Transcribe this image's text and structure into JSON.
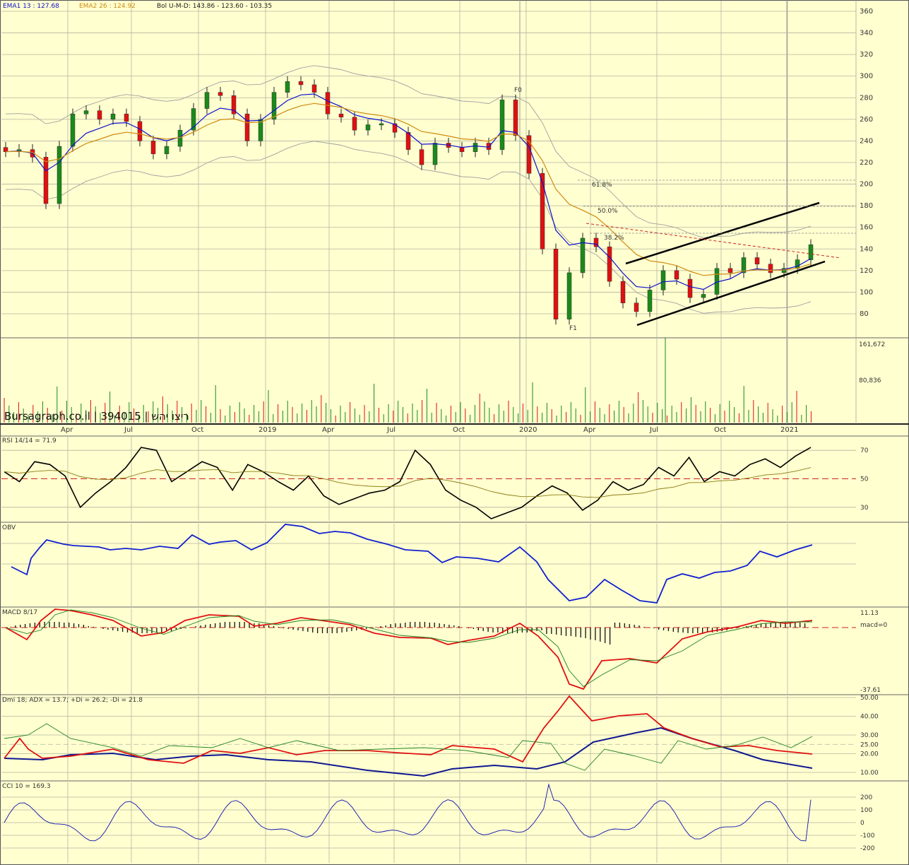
{
  "colors": {
    "background": "#ffffd0",
    "grid": "#b5b5a0",
    "up": "#1a8a1a",
    "down": "#e01010",
    "ema1": "#1010d0",
    "ema2": "#d08a10",
    "bollinger": "#a0a0a0",
    "obv": "#1020d0",
    "rsi": "#000000",
    "rsi_signal": "#8a7a10",
    "macd": "#e01010",
    "macd_signal": "#208020",
    "adx": "#101890",
    "plus_di": "#e01010",
    "minus_di": "#208020",
    "cci": "#1010b0",
    "volume": "#1a8a1a"
  },
  "header": {
    "ema1": "EMA1 13 : 127.68",
    "ema2": "EMA2 26 : 124.92",
    "bollinger": "Bol U-M-D: 143.86 - 123.60 - 103.35"
  },
  "brand": "Bursagraph.co.il | 394015 | ריצו יהש",
  "chart_data": {
    "type": "line",
    "x": [
      "Apr",
      "Jul",
      "Oct",
      "2019",
      "Apr",
      "Jul",
      "Oct",
      "2020",
      "Apr",
      "Jul",
      "Oct",
      "2021"
    ],
    "panels": [
      {
        "name": "price",
        "ylim": [
          60,
          365
        ],
        "yticks": [
          "360",
          "340",
          "320",
          "300",
          "280",
          "260",
          "240",
          "220",
          "200",
          "180",
          "160",
          "140",
          "120",
          "100",
          "80"
        ],
        "fib_labels": [
          "61.8%",
          "50.0%",
          "38.2%"
        ],
        "markers": [
          "F0",
          "F1"
        ],
        "series": [
          {
            "name": "EMA1 13",
            "last": 127.68
          },
          {
            "name": "EMA2 26",
            "last": 124.92
          }
        ],
        "bollinger": {
          "upper": 143.86,
          "middle": 123.6,
          "lower": 103.35
        },
        "approx_close": [
          230,
          232,
          225,
          182,
          235,
          265,
          268,
          260,
          265,
          258,
          240,
          228,
          235,
          250,
          270,
          285,
          282,
          265,
          240,
          260,
          285,
          295,
          292,
          285,
          265,
          262,
          250,
          255,
          256,
          248,
          232,
          218,
          238,
          234,
          230,
          238,
          232,
          278,
          245,
          210,
          140,
          75,
          118,
          150,
          142,
          110,
          90,
          82,
          102,
          120,
          112,
          95,
          98,
          122,
          118,
          132,
          126,
          118,
          122,
          130,
          144
        ]
      },
      {
        "name": "volume",
        "yticks": [
          "161,672",
          "80,836"
        ]
      },
      {
        "name": "RSI 14/14 = 71.9",
        "ylim": [
          20,
          80
        ],
        "yticks": [
          "70",
          "50",
          "30"
        ],
        "approx_values": [
          55,
          48,
          62,
          60,
          52,
          30,
          40,
          48,
          58,
          72,
          70,
          48,
          55,
          62,
          58,
          42,
          60,
          55,
          48,
          42,
          52,
          38,
          32,
          36,
          40,
          42,
          48,
          70,
          60,
          42,
          35,
          30,
          22,
          26,
          30,
          38,
          45,
          40,
          28,
          35,
          48,
          42,
          46,
          58,
          52,
          65,
          48,
          55,
          52,
          60,
          64,
          58,
          66,
          72
        ]
      },
      {
        "name": "OBV"
      },
      {
        "name": "MACD 8/17",
        "yticks": [
          "11.13",
          "macd=0",
          "-37.61"
        ]
      },
      {
        "name": "Dmi 18; ADX = 13.7; +Di = 26.2; -Di = 21.8",
        "yticks": [
          "50.00",
          "40.00",
          "30.00",
          "25.00",
          "20.00",
          "10.00"
        ],
        "series": [
          {
            "name": "ADX",
            "last": 13.7
          },
          {
            "name": "+Di",
            "last": 26.2
          },
          {
            "name": "-Di",
            "last": 21.8
          }
        ]
      },
      {
        "name": "CCI 10 = 169.3",
        "yticks": [
          "200",
          "100",
          "0",
          "-100",
          "-200"
        ]
      }
    ]
  }
}
